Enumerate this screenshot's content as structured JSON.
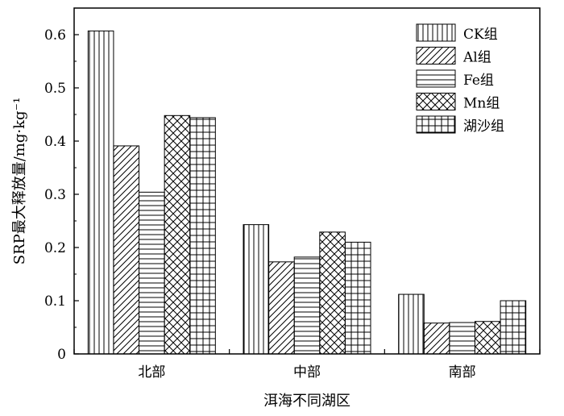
{
  "chart_data": {
    "type": "bar",
    "categories": [
      "北部",
      "中部",
      "南部"
    ],
    "series": [
      {
        "name": "CK组",
        "values": [
          0.607,
          0.243,
          0.112
        ],
        "pattern": "vertical-lines"
      },
      {
        "name": "Al组",
        "values": [
          0.391,
          0.173,
          0.058
        ],
        "pattern": "diagonal-lines"
      },
      {
        "name": "Fe组",
        "values": [
          0.304,
          0.182,
          0.059
        ],
        "pattern": "horizontal-lines"
      },
      {
        "name": "Mn组",
        "values": [
          0.448,
          0.229,
          0.061
        ],
        "pattern": "crosshatch"
      },
      {
        "name": "湖沙组",
        "values": [
          0.444,
          0.21,
          0.1
        ],
        "pattern": "grid"
      }
    ],
    "xlabel": "洱海不同湖区",
    "ylabel": "SRP最大释放量/mg·kg⁻¹",
    "ylim": [
      0,
      0.65
    ],
    "yticks": [
      0,
      0.1,
      0.2,
      0.3,
      0.4,
      0.5,
      0.6
    ],
    "ytick_labels": [
      "0",
      "0.1",
      "0.2",
      "0.3",
      "0.4",
      "0.5",
      "0.6"
    ],
    "grid": false,
    "legend_position": "top-right",
    "colors": {
      "bar_fill": "#ffffff",
      "stroke": "#000000"
    }
  }
}
